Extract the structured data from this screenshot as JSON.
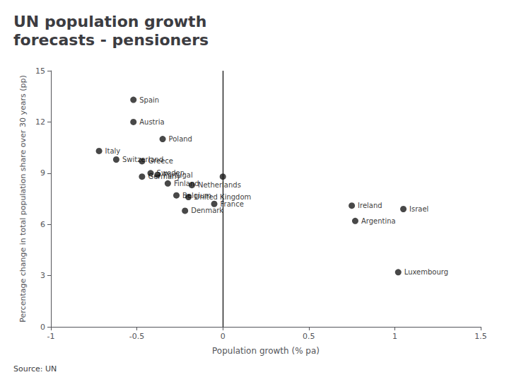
{
  "chart_data": {
    "type": "scatter",
    "title": "UN population growth\nforecasts - pensioners",
    "xlabel": "Population growth (% pa)",
    "ylabel": "Percentage change in total population share over 30 years (pp)",
    "source": "Source: UN",
    "x": [
      -0.52,
      -0.52,
      -0.35,
      -0.72,
      -0.62,
      -0.47,
      -0.42,
      -0.47,
      -0.38,
      -0.32,
      -0.18,
      -0.27,
      -0.2,
      -0.05,
      -0.22,
      0.75,
      0.77,
      1.05,
      1.02,
      0.0
    ],
    "values": [
      13.3,
      12.0,
      11.0,
      10.3,
      9.8,
      9.7,
      9.0,
      8.8,
      8.9,
      8.4,
      8.3,
      7.7,
      7.6,
      7.2,
      6.8,
      7.1,
      6.2,
      6.9,
      3.2,
      8.8
    ],
    "point_labels": [
      "Spain",
      "Austria",
      "Poland",
      "Italy",
      "Switzerland",
      "Greece",
      "Sweden",
      "Germany",
      "Portugal",
      "Finland",
      "Netherlands",
      "Belgium",
      "United Kingdom",
      "France",
      "Denmark",
      "Ireland",
      "Argentina",
      "Israel",
      "Luxembourg",
      null
    ],
    "color": "#1a1a1a",
    "vline": 0,
    "xlim": [
      -1,
      1.5
    ],
    "ylim": [
      0,
      15
    ],
    "xticks": [
      -1,
      -0.5,
      0,
      0.5,
      1,
      1.5
    ],
    "yticks": [
      0,
      3,
      6,
      9,
      12,
      15
    ],
    "grid": false
  }
}
